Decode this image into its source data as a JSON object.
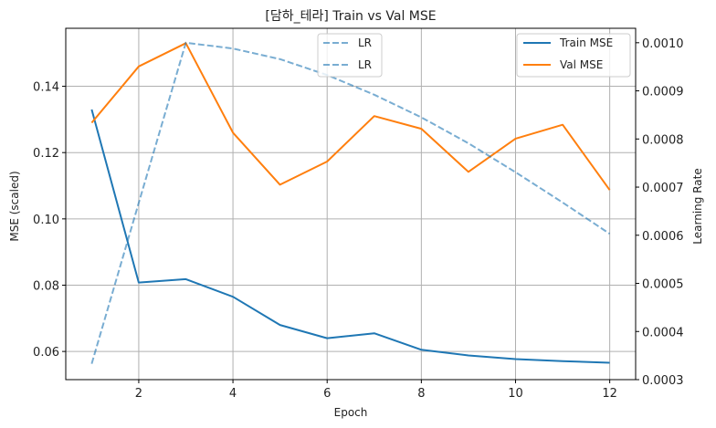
{
  "chart_data": {
    "type": "line",
    "title": "[담하_테라] Train vs Val MSE",
    "xlabel": "Epoch",
    "ylabel": "MSE (scaled)",
    "y2label": "Learning Rate",
    "x": [
      1,
      2,
      3,
      4,
      5,
      6,
      7,
      8,
      9,
      10,
      11,
      12
    ],
    "xticks": [
      "2",
      "4",
      "6",
      "8",
      "10",
      "12"
    ],
    "xlim": [
      0.45,
      12.55
    ],
    "ylim": [
      0.0515,
      0.1575
    ],
    "yticks": [
      "0.06",
      "0.08",
      "0.10",
      "0.12",
      "0.14"
    ],
    "y2lim": [
      0.0003,
      0.00103
    ],
    "y2ticks": [
      "0.0003",
      "0.0004",
      "0.0005",
      "0.0006",
      "0.0007",
      "0.0008",
      "0.0009",
      "0.0010"
    ],
    "grid": true,
    "series": [
      {
        "name": "Train MSE",
        "color": "#1f77b4",
        "axis": "left",
        "style": "solid",
        "values": [
          0.133,
          0.0808,
          0.0818,
          0.0765,
          0.068,
          0.064,
          0.0655,
          0.0605,
          0.0588,
          0.0577,
          0.0571,
          0.0566
        ]
      },
      {
        "name": "Val MSE",
        "color": "#ff7f0e",
        "axis": "left",
        "style": "solid",
        "values": [
          0.129,
          0.146,
          0.153,
          0.126,
          0.1103,
          0.1173,
          0.131,
          0.1272,
          0.1142,
          0.1242,
          0.1284,
          0.1087
        ]
      },
      {
        "name": "LR",
        "color": "#1f77b4",
        "axis": "right",
        "style": "dashed",
        "values": [
          0.000333,
          0.000667,
          0.001,
          0.000988,
          0.000966,
          0.000933,
          0.000892,
          0.000845,
          0.000791,
          0.000731,
          0.000668,
          0.000603
        ]
      }
    ],
    "legend_right": {
      "position": "top-right",
      "entries": [
        "Train MSE",
        "Val MSE"
      ]
    },
    "legend_center": {
      "position": "top-center",
      "entries": [
        "LR",
        "LR"
      ]
    }
  }
}
